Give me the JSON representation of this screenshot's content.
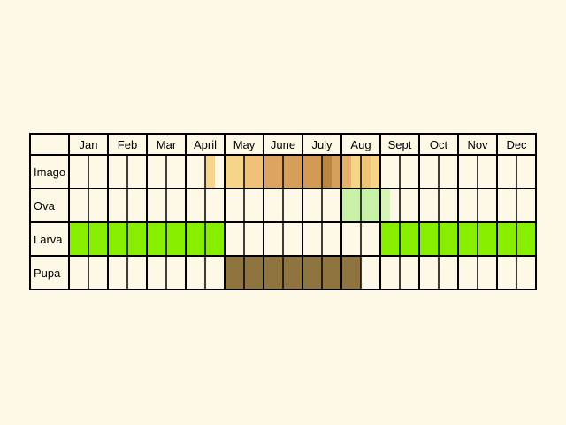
{
  "months": [
    "Jan",
    "Feb",
    "Mar",
    "April",
    "May",
    "June",
    "July",
    "Aug",
    "Sept",
    "Oct",
    "Nov",
    "Dec"
  ],
  "colors": {
    "background": "#fdf9e6",
    "grid": "#000000",
    "imago_light": "#f6d58a",
    "imago_mid": "#dca460",
    "imago_dark": "#c48a3e",
    "ova": "#c8f0a8",
    "larva": "#88ee00",
    "pupa": "#8f7440"
  },
  "stages": [
    {
      "label": "Imago",
      "fills": [
        {
          "from": 7,
          "to": 7.5,
          "color": "#f6d58a"
        },
        {
          "from": 8,
          "to": 9,
          "color": "#f6d58a"
        },
        {
          "from": 9,
          "to": 10,
          "color": "#eec277"
        },
        {
          "from": 10,
          "to": 11,
          "color": "#dca460"
        },
        {
          "from": 11,
          "to": 12,
          "color": "#d69e58"
        },
        {
          "from": 12,
          "to": 13,
          "color": "#d29a55"
        },
        {
          "from": 13,
          "to": 13.5,
          "color": "#ba8540"
        },
        {
          "from": 13.5,
          "to": 14,
          "color": "#d5a05c"
        },
        {
          "from": 14,
          "to": 14.5,
          "color": "#e3b36c"
        },
        {
          "from": 14.5,
          "to": 15,
          "color": "#f6d58a"
        },
        {
          "from": 15,
          "to": 15.5,
          "color": "#eec277"
        },
        {
          "from": 15.5,
          "to": 16,
          "color": "#f6d58a"
        }
      ]
    },
    {
      "label": "Ova",
      "fills": [
        {
          "from": 14,
          "to": 16,
          "color": "#c8f0a8"
        },
        {
          "from": 16,
          "to": 16.5,
          "color": "#d6f3b8"
        }
      ]
    },
    {
      "label": "Larva",
      "fills": [
        {
          "from": 0,
          "to": 8,
          "color": "#88ee00"
        },
        {
          "from": 16,
          "to": 24,
          "color": "#88ee00"
        }
      ]
    },
    {
      "label": "Pupa",
      "fills": [
        {
          "from": 8,
          "to": 15,
          "color": "#8f7440"
        }
      ]
    }
  ]
}
